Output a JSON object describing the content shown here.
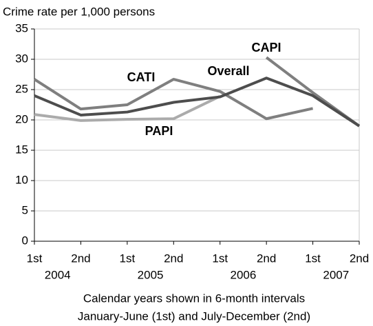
{
  "chart_data": {
    "type": "line",
    "title": "Crime rate per 1,000 persons",
    "categories": [
      "1st",
      "2nd",
      "1st",
      "2nd",
      "1st",
      "2nd",
      "1st",
      "2nd"
    ],
    "year_labels": [
      "2004",
      "2005",
      "2006",
      "2007"
    ],
    "x_label": [
      "Calendar years shown in 6-month intervals",
      "January-June (1st) and July-December (2nd)"
    ],
    "ylim": [
      0,
      35
    ],
    "yticks": [
      0,
      5,
      10,
      15,
      20,
      25,
      30,
      35
    ],
    "grid": true,
    "series": [
      {
        "name": "Overall",
        "color": "#4d4d4d",
        "values": [
          24,
          20.8,
          21.3,
          22.9,
          23.8,
          26.9,
          24,
          19
        ]
      },
      {
        "name": "CATI",
        "color": "#7f7f7f",
        "values": [
          26.7,
          21.8,
          22.5,
          26.7,
          24.7,
          20.2,
          21.9,
          null
        ]
      },
      {
        "name": "CAPI",
        "color": "#7f7f7f",
        "values": [
          null,
          null,
          null,
          null,
          null,
          30.3,
          24.5,
          19
        ]
      },
      {
        "name": "PAPI",
        "color": "#ababab",
        "values": [
          20.9,
          19.9,
          20.1,
          20.2,
          23.9,
          null,
          null,
          null
        ]
      }
    ]
  }
}
